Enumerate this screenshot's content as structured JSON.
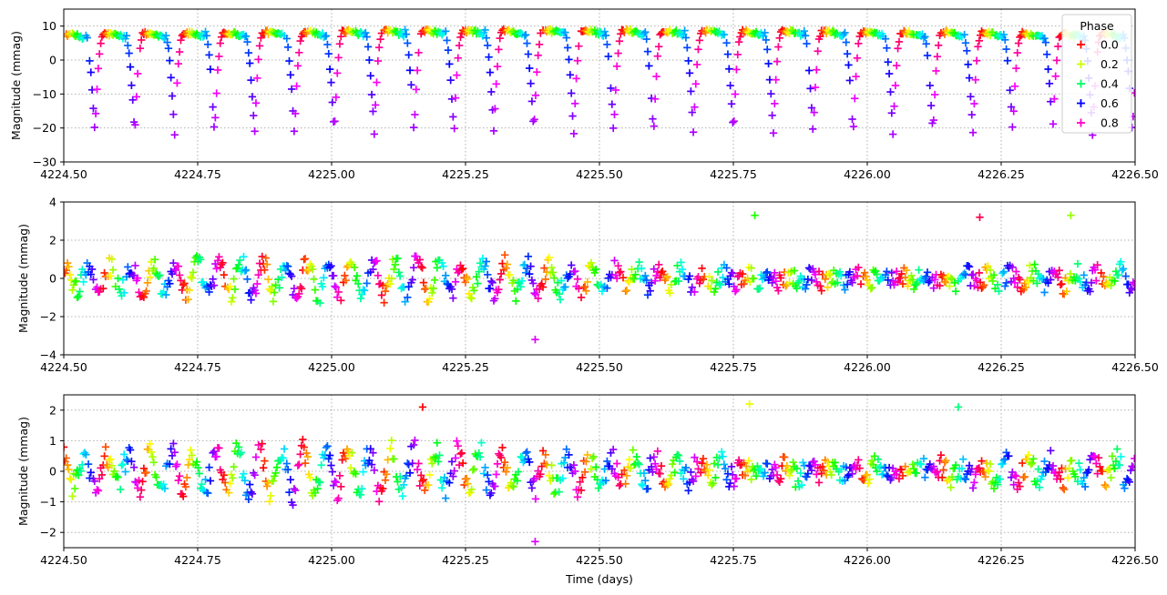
{
  "chart_data": [
    {
      "type": "scatter",
      "marker": "+",
      "panel": "top",
      "xlabel": "",
      "ylabel": "Magnitude (mmag)",
      "xlim": [
        4224.5,
        4226.5
      ],
      "ylim": [
        -30,
        15
      ],
      "xticks": [
        4224.5,
        4224.75,
        4225.0,
        4225.25,
        4225.5,
        4225.75,
        4226.0,
        4226.25,
        4226.5
      ],
      "xtick_labels": [
        "4224.50",
        "4224.75",
        "4225.00",
        "4225.25",
        "4225.50",
        "4225.75",
        "4226.00",
        "4226.25",
        "4226.50"
      ],
      "yticks": [
        -30,
        -20,
        -10,
        0,
        10
      ],
      "ytick_labels": [
        "−30",
        "−20",
        "−10",
        "0",
        "10"
      ],
      "grid": true,
      "signal": "pulsation",
      "period_days": 0.0745,
      "max_mmag": 7.5,
      "min_mmag": -22
    },
    {
      "type": "scatter",
      "marker": "+",
      "panel": "middle",
      "xlabel": "",
      "ylabel": "Magnitude (mmag)",
      "xlim": [
        4224.5,
        4226.5
      ],
      "ylim": [
        -4,
        4
      ],
      "xticks": [
        4224.5,
        4224.75,
        4225.0,
        4225.25,
        4225.5,
        4225.75,
        4226.0,
        4226.25,
        4226.5
      ],
      "xtick_labels": [
        "4224.50",
        "4224.75",
        "4225.00",
        "4225.25",
        "4225.50",
        "4225.75",
        "4226.00",
        "4226.25",
        "4226.50"
      ],
      "yticks": [
        -4,
        -2,
        0,
        2,
        4
      ],
      "ytick_labels": [
        "−4",
        "−2",
        "0",
        "2",
        "4"
      ],
      "grid": true,
      "signal": "residual",
      "amplitude_mmag": 1.0,
      "outliers": [
        {
          "t": 4225.38,
          "v": -3.2
        },
        {
          "t": 4225.79,
          "v": 3.3
        },
        {
          "t": 4226.38,
          "v": 3.3
        },
        {
          "t": 4226.21,
          "v": 3.2
        }
      ]
    },
    {
      "type": "scatter",
      "marker": "+",
      "panel": "bottom",
      "xlabel": "Time (days)",
      "ylabel": "Magnitude (mmag)",
      "xlim": [
        4224.5,
        4226.5
      ],
      "ylim": [
        -2.5,
        2.5
      ],
      "xticks": [
        4224.5,
        4224.75,
        4225.0,
        4225.25,
        4225.5,
        4225.75,
        4226.0,
        4226.25,
        4226.5
      ],
      "xtick_labels": [
        "4224.50",
        "4224.75",
        "4225.00",
        "4225.25",
        "4225.50",
        "4225.75",
        "4226.00",
        "4226.25",
        "4226.50"
      ],
      "yticks": [
        -2,
        -1,
        0,
        1,
        2
      ],
      "ytick_labels": [
        "−2",
        "−1",
        "0",
        "1",
        "2"
      ],
      "grid": true,
      "signal": "residual",
      "amplitude_mmag": 0.8,
      "outliers": [
        {
          "t": 4225.38,
          "v": -2.3
        },
        {
          "t": 4225.78,
          "v": 2.2
        },
        {
          "t": 4226.17,
          "v": 2.1
        },
        {
          "t": 4225.17,
          "v": 2.1
        }
      ]
    }
  ],
  "legend": {
    "title": "Phase",
    "placement": "top-right",
    "entries": [
      {
        "label": "0.0",
        "color": "#ff0000"
      },
      {
        "label": "0.2",
        "color": "#ccff00"
      },
      {
        "label": "0.4",
        "color": "#00ff66"
      },
      {
        "label": "0.6",
        "color": "#0000ff"
      },
      {
        "label": "0.8",
        "color": "#ff00cc"
      }
    ]
  },
  "colormap": "hsv"
}
